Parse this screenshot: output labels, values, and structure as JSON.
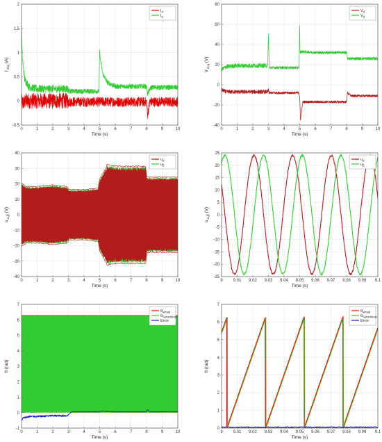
{
  "chart_data": [
    {
      "id": "p1",
      "type": "line",
      "xlabel": "Time (s)",
      "ylabel": "I",
      "ylabel_sub": "d,q",
      "ylabel_unit": "(A)",
      "xlim": [
        0,
        10
      ],
      "ylim": [
        -0.5,
        2
      ],
      "xticks": [
        0,
        1,
        2,
        3,
        4,
        5,
        6,
        7,
        8,
        9,
        10
      ],
      "yticks": [
        -0.5,
        0,
        0.5,
        1,
        1.5,
        2
      ],
      "legend": {
        "position": "top-right"
      },
      "series": [
        {
          "name": "I",
          "sub": "d",
          "color": "#e00000",
          "noise": 0.1,
          "x": [
            0,
            0.05,
            0.3,
            1,
            2,
            2.95,
            3.0,
            3.05,
            4,
            4.95,
            5.0,
            5.02,
            5.05,
            6,
            7,
            8.0,
            8.03,
            8.06,
            8.2,
            9,
            10
          ],
          "y": [
            0,
            -0.05,
            0,
            0,
            0,
            0,
            0,
            -0.02,
            -0.02,
            -0.02,
            -0.02,
            -0.02,
            -0.02,
            -0.02,
            -0.02,
            -0.02,
            -0.12,
            -0.3,
            -0.02,
            -0.02,
            -0.02
          ]
        },
        {
          "name": "I",
          "sub": "q",
          "color": "#33cc33",
          "noise": 0.05,
          "x": [
            0,
            0.05,
            0.2,
            0.5,
            1,
            2,
            2.95,
            3.0,
            3.1,
            4,
            4.95,
            5.0,
            5.05,
            5.2,
            5.5,
            6,
            7,
            7.95,
            8.0,
            8.06,
            8.3,
            9,
            10
          ],
          "y": [
            1.6,
            0.9,
            0.45,
            0.28,
            0.25,
            0.25,
            0.25,
            0.22,
            0.2,
            0.2,
            0.2,
            1.05,
            0.85,
            0.55,
            0.38,
            0.3,
            0.3,
            0.3,
            0.3,
            0.15,
            0.28,
            0.28,
            0.28
          ]
        }
      ]
    },
    {
      "id": "p2",
      "type": "line",
      "xlabel": "Time (s)",
      "ylabel": "V",
      "ylabel_sub": "d,q",
      "ylabel_unit": "(V)",
      "xlim": [
        0,
        10
      ],
      "ylim": [
        -40,
        80
      ],
      "xticks": [
        0,
        1,
        2,
        3,
        4,
        5,
        6,
        7,
        8,
        9,
        10
      ],
      "yticks": [
        -40,
        -20,
        0,
        20,
        40,
        60,
        80
      ],
      "legend": {
        "position": "top-right"
      },
      "series": [
        {
          "name": "V",
          "sub": "d",
          "color": "#b31c1c",
          "noise": 1.2,
          "x": [
            0,
            0.3,
            1,
            2,
            2.95,
            3.0,
            3.05,
            4,
            4.95,
            5.0,
            5.05,
            5.2,
            6,
            7,
            7.95,
            8.0,
            8.05,
            8.3,
            9,
            10
          ],
          "y": [
            -5,
            -7,
            -7,
            -7,
            -7,
            -5,
            -8,
            -8,
            -8,
            -12,
            -35,
            -17,
            -17,
            -17,
            -17,
            -17,
            -8,
            -11,
            -11,
            -11
          ]
        },
        {
          "name": "V",
          "sub": "q",
          "color": "#33cc33",
          "noise": 1.4,
          "x": [
            0,
            0.3,
            1,
            2,
            2.95,
            3.0,
            3.05,
            4,
            4.95,
            5.0,
            5.02,
            5.1,
            6,
            7,
            7.95,
            8.0,
            8.05,
            9,
            10
          ],
          "y": [
            15,
            18,
            19,
            19,
            19,
            50,
            17,
            17,
            17,
            60,
            32,
            33,
            32,
            32,
            32,
            32,
            26,
            26,
            26
          ]
        }
      ]
    },
    {
      "id": "p3",
      "type": "line",
      "kind": "envelope",
      "xlabel": "Time (s)",
      "ylabel": "u",
      "ylabel_sub": "α,β",
      "ylabel_unit": "(V)",
      "xlim": [
        0,
        10
      ],
      "ylim": [
        -40,
        40
      ],
      "xticks": [
        0,
        1,
        2,
        3,
        4,
        5,
        6,
        7,
        8,
        9,
        10
      ],
      "yticks": [
        -40,
        -30,
        -20,
        -10,
        0,
        10,
        20,
        30,
        40
      ],
      "legend": {
        "position": "top-right"
      },
      "envelope": {
        "x": [
          0,
          0.3,
          1,
          2,
          2.9,
          3.0,
          3.05,
          4,
          4.9,
          5.0,
          5.5,
          6,
          7,
          7.95,
          8.0,
          8.1,
          9,
          10
        ],
        "amp": [
          20,
          18,
          18,
          19,
          18,
          17,
          16,
          16,
          17,
          23,
          32,
          31,
          31,
          31,
          25,
          24,
          24,
          24
        ]
      },
      "series": [
        {
          "name": "u",
          "sub": "α",
          "color": "#b31c1c"
        },
        {
          "name": "u",
          "sub": "β",
          "color": "#33cc33"
        }
      ]
    },
    {
      "id": "p4",
      "type": "line",
      "kind": "sine",
      "xlabel": "Time (s)",
      "ylabel": "u",
      "ylabel_sub": "α,β",
      "ylabel_unit": "(V)",
      "xlim": [
        9,
        9.1
      ],
      "ylim": [
        -25,
        25
      ],
      "xticks": [
        9,
        9.01,
        9.02,
        9.03,
        9.04,
        9.05,
        9.06,
        9.07,
        9.08,
        9.09,
        9.1
      ],
      "yticks": [
        -25,
        -20,
        -15,
        -10,
        -5,
        0,
        5,
        10,
        15,
        20,
        25
      ],
      "legend": {
        "position": "top-right"
      },
      "series": [
        {
          "name": "u",
          "sub": "α",
          "color": "#b31c1c",
          "amp": 24,
          "period": 0.02476,
          "phase": 2.6
        },
        {
          "name": "u",
          "sub": "β",
          "color": "#33cc33",
          "amp": 24,
          "period": 0.02476,
          "phase": 1.03
        }
      ]
    },
    {
      "id": "p5",
      "type": "line",
      "kind": "theta-full",
      "xlabel": "Time (s)",
      "ylabel": "θ",
      "ylabel_unit": "(rad)",
      "xlim": [
        0,
        10
      ],
      "ylim": [
        -1,
        7
      ],
      "xticks": [
        0,
        1,
        2,
        3,
        4,
        5,
        6,
        7,
        8,
        9,
        10
      ],
      "yticks": [
        -1,
        0,
        1,
        2,
        3,
        4,
        5,
        6,
        7
      ],
      "legend": {
        "position": "top-right"
      },
      "series": [
        {
          "name": "θ",
          "sub": "actual",
          "color": "#e00000"
        },
        {
          "name": "θ",
          "sub": "Sensorless",
          "color": "#33cc33"
        },
        {
          "name": "Error",
          "color": "#1515d0"
        }
      ],
      "band": [
        0,
        6.28
      ],
      "error": {
        "x": [
          0,
          0.1,
          0.5,
          1,
          2,
          2.95,
          3.0,
          3.05,
          3.2,
          4,
          5,
          5.05,
          6,
          7,
          8.0,
          8.05,
          8.2,
          9,
          10
        ],
        "y": [
          -0.5,
          -0.35,
          -0.25,
          -0.25,
          -0.2,
          -0.2,
          -0.12,
          -0.1,
          0.05,
          0.05,
          0.05,
          0.1,
          0.05,
          0.05,
          0.05,
          0.2,
          0.05,
          0.05,
          0.05
        ]
      }
    },
    {
      "id": "p6",
      "type": "line",
      "kind": "sawtooth",
      "xlabel": "Time (s)",
      "ylabel": "θ",
      "ylabel_unit": "(rad)",
      "xlim": [
        9,
        9.1
      ],
      "ylim": [
        0,
        7
      ],
      "xticks": [
        9,
        9.01,
        9.02,
        9.03,
        9.04,
        9.05,
        9.06,
        9.07,
        9.08,
        9.09,
        9.1
      ],
      "yticks": [
        0,
        1,
        2,
        3,
        4,
        5,
        6,
        7
      ],
      "legend": {
        "position": "top-right"
      },
      "series": [
        {
          "name": "θ",
          "sub": "actual",
          "color": "#e00000"
        },
        {
          "name": "θ",
          "sub": "Sensorless",
          "color": "#6a9e1f"
        },
        {
          "name": "Error",
          "color": "#1515d0"
        }
      ],
      "wrap_times": [
        9.0034,
        9.0281,
        9.0529,
        9.0777,
        9.1025
      ],
      "theta_max": 6.28,
      "error_level": 0.05
    }
  ]
}
